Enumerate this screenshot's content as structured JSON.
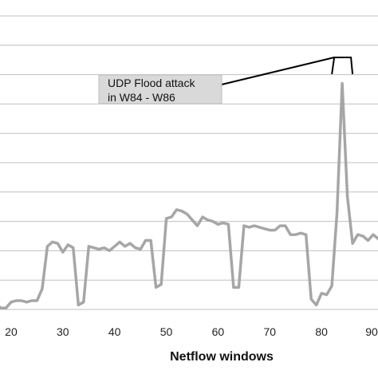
{
  "chart_data": {
    "type": "line",
    "title": "",
    "xlabel": "Netflow windows",
    "ylabel": "",
    "xlim": [
      16,
      92
    ],
    "ylim": [
      0,
      10
    ],
    "grid": "horizontal",
    "x_ticks": [
      20,
      30,
      40,
      50,
      60,
      70,
      80,
      "90"
    ],
    "y_gridlines": [
      1,
      2,
      3,
      4,
      5,
      6,
      7,
      8,
      9,
      10
    ],
    "line_color": "#a6a6a6",
    "series": [
      {
        "x": [
          16,
          17,
          18,
          19,
          20,
          21,
          22,
          23,
          24,
          25,
          26,
          27,
          28,
          29,
          30,
          31,
          32,
          33,
          34,
          35,
          36,
          37,
          38,
          39,
          40,
          41,
          42,
          43,
          44,
          45,
          46,
          47,
          48,
          49,
          50,
          51,
          52,
          53,
          54,
          55,
          56,
          57,
          58,
          59,
          60,
          61,
          62,
          63,
          64,
          65,
          66,
          67,
          68,
          69,
          70,
          71,
          72,
          73,
          74,
          75,
          76,
          77,
          78,
          79,
          80,
          81,
          82,
          83,
          84,
          85,
          86,
          87,
          88,
          89,
          90,
          91,
          92
        ],
        "y": [
          0.4,
          0.2,
          0.05,
          0.05,
          0.25,
          0.3,
          0.3,
          0.25,
          0.3,
          0.3,
          0.7,
          2.15,
          2.3,
          2.25,
          1.95,
          2.2,
          2.1,
          0.15,
          0.25,
          2.15,
          2.1,
          2.05,
          2.1,
          2.0,
          2.15,
          2.3,
          2.15,
          2.25,
          2.1,
          2.05,
          2.35,
          2.35,
          0.75,
          0.85,
          3.1,
          3.15,
          3.4,
          3.35,
          3.25,
          3.05,
          2.85,
          3.15,
          3.05,
          3.0,
          2.9,
          2.95,
          2.9,
          0.75,
          0.75,
          2.85,
          2.8,
          2.85,
          2.8,
          2.75,
          2.7,
          2.7,
          2.85,
          2.85,
          2.55,
          2.55,
          2.6,
          2.55,
          0.35,
          0.15,
          0.55,
          0.5,
          0.8,
          3.3,
          7.7,
          3.85,
          2.25,
          2.55,
          2.5,
          2.35,
          2.55,
          2.4,
          2.4
        ]
      }
    ],
    "annotation": {
      "line1": "UDP Flood attack",
      "line2": "in W84 - W86",
      "bracket_from": 82,
      "bracket_to": 86
    }
  }
}
